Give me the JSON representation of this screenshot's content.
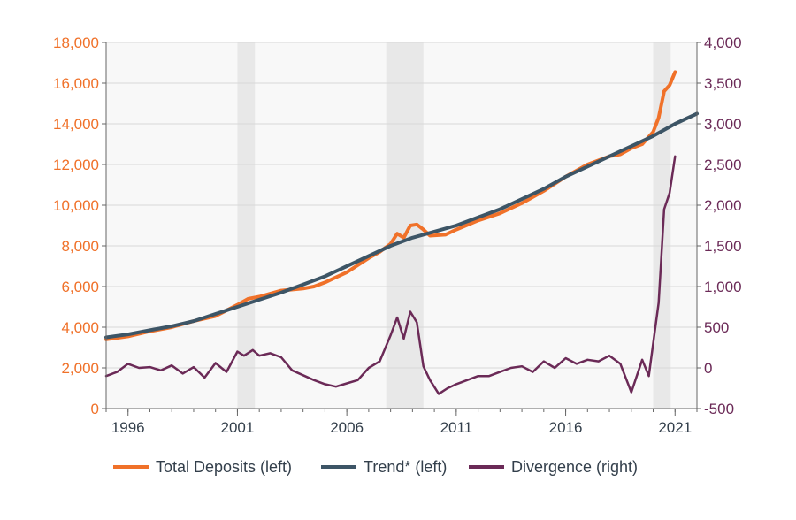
{
  "colors": {
    "deposits": "#f07129",
    "trend": "#3d5566",
    "divergence": "#6b2a57",
    "recession_shade": "#e8e8e8",
    "plot_bg": "#f8f8f8",
    "grid": "#d9d9d9",
    "x_ticks": "#333f4b"
  },
  "chart_data": {
    "type": "line",
    "title": "",
    "xlabel": "",
    "ylabel_left": "",
    "ylabel_right": "",
    "grid": true,
    "legend_position": "bottom",
    "x_range": [
      1995.0,
      2022.0
    ],
    "ylim_left": [
      0,
      18000
    ],
    "ylim_right": [
      -500,
      4000
    ],
    "yticks_left": [
      "0",
      "2,000",
      "4,000",
      "6,000",
      "8,000",
      "10,000",
      "12,000",
      "14,000",
      "16,000",
      "18,000"
    ],
    "yticks_right": [
      "-500",
      "0",
      "500",
      "1,000",
      "1,500",
      "2,000",
      "2,500",
      "3,000",
      "3,500",
      "4,000"
    ],
    "xticks": [
      "1996",
      "2001",
      "2006",
      "2011",
      "2016",
      "2021"
    ],
    "xtick_values": [
      1996,
      2001,
      2006,
      2011,
      2016,
      2021
    ],
    "recessions": [
      [
        2001.0,
        2001.8
      ],
      [
        2007.8,
        2009.5
      ],
      [
        2020.0,
        2020.8
      ]
    ],
    "series": [
      {
        "name": "Total Deposits (left)",
        "axis": "left",
        "x": [
          1995.0,
          1996.0,
          1997.0,
          1998.0,
          1999.0,
          2000.0,
          2001.0,
          2001.5,
          2002.0,
          2003.0,
          2004.0,
          2004.5,
          2005.0,
          2006.0,
          2007.0,
          2007.5,
          2008.0,
          2008.3,
          2008.6,
          2008.9,
          2009.2,
          2009.5,
          2009.8,
          2010.5,
          2011.0,
          2012.0,
          2013.0,
          2014.0,
          2015.0,
          2016.0,
          2017.0,
          2018.0,
          2018.5,
          2019.0,
          2019.5,
          2020.0,
          2020.25,
          2020.5,
          2020.75,
          2021.0
        ],
        "y": [
          3400,
          3550,
          3800,
          4000,
          4300,
          4550,
          5100,
          5400,
          5500,
          5800,
          5900,
          6000,
          6200,
          6700,
          7400,
          7700,
          8100,
          8600,
          8400,
          9000,
          9050,
          8800,
          8500,
          8550,
          8800,
          9250,
          9600,
          10100,
          10700,
          11400,
          12000,
          12400,
          12500,
          12800,
          13000,
          13600,
          14300,
          15600,
          15900,
          16550
        ]
      },
      {
        "name": "Trend* (left)",
        "axis": "left",
        "x": [
          1995.0,
          1996.0,
          1997.0,
          1998.0,
          1999.0,
          2000.0,
          2001.0,
          2002.0,
          2003.0,
          2004.0,
          2005.0,
          2006.0,
          2007.0,
          2008.0,
          2009.0,
          2010.0,
          2011.0,
          2012.0,
          2013.0,
          2014.0,
          2015.0,
          2016.0,
          2017.0,
          2018.0,
          2019.0,
          2020.0,
          2021.0,
          2022.0
        ],
        "y": [
          3500,
          3650,
          3850,
          4050,
          4300,
          4650,
          5000,
          5350,
          5700,
          6100,
          6500,
          7000,
          7500,
          8000,
          8400,
          8700,
          9000,
          9400,
          9800,
          10300,
          10800,
          11400,
          11900,
          12400,
          12900,
          13400,
          14000,
          14500
        ]
      },
      {
        "name": "Divergence (right)",
        "axis": "right",
        "x": [
          1995.0,
          1995.5,
          1996.0,
          1996.5,
          1997.0,
          1997.5,
          1998.0,
          1998.5,
          1999.0,
          1999.5,
          2000.0,
          2000.5,
          2001.0,
          2001.3,
          2001.7,
          2002.0,
          2002.5,
          2003.0,
          2003.5,
          2004.0,
          2004.5,
          2005.0,
          2005.5,
          2006.0,
          2006.5,
          2007.0,
          2007.5,
          2008.0,
          2008.3,
          2008.6,
          2008.9,
          2009.2,
          2009.5,
          2009.8,
          2010.2,
          2010.6,
          2011.0,
          2011.5,
          2012.0,
          2012.5,
          2013.0,
          2013.5,
          2014.0,
          2014.5,
          2015.0,
          2015.5,
          2016.0,
          2016.5,
          2017.0,
          2017.5,
          2018.0,
          2018.5,
          2019.0,
          2019.5,
          2019.8,
          2020.0,
          2020.25,
          2020.5,
          2020.75,
          2021.0
        ],
        "y": [
          -100,
          -50,
          50,
          0,
          10,
          -30,
          30,
          -70,
          10,
          -120,
          60,
          -50,
          200,
          150,
          220,
          150,
          180,
          130,
          -30,
          -90,
          -150,
          -200,
          -230,
          -190,
          -150,
          0,
          80,
          400,
          620,
          360,
          690,
          560,
          20,
          -150,
          -320,
          -250,
          -200,
          -150,
          -100,
          -100,
          -50,
          0,
          20,
          -50,
          80,
          0,
          120,
          50,
          100,
          80,
          150,
          50,
          -300,
          100,
          -100,
          300,
          800,
          1950,
          2150,
          2600
        ]
      }
    ]
  },
  "legend": {
    "items": [
      {
        "label": "Total Deposits (left)"
      },
      {
        "label": "Trend* (left)"
      },
      {
        "label": "Divergence (right)"
      }
    ]
  }
}
